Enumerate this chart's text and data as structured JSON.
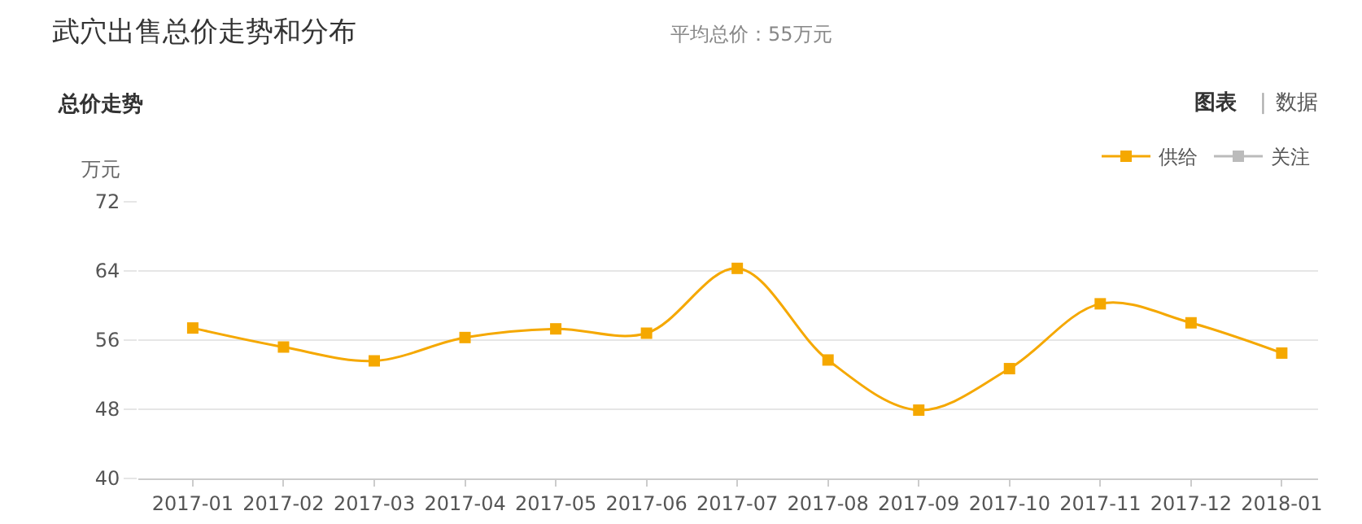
{
  "chart_data": {
    "type": "line",
    "title": "武穴出售总价走势和分布",
    "subtitle": "平均总价：55万元",
    "ylabel": "万元",
    "annotations": [
      "总价走势",
      "图表",
      "|",
      "数据"
    ],
    "categories": [
      "2017-01",
      "2017-02",
      "2017-03",
      "2017-04",
      "2017-05",
      "2017-06",
      "2017-07",
      "2017-08",
      "2017-09",
      "2017-10",
      "2017-11",
      "2017-12",
      "2018-01"
    ],
    "series": [
      {
        "name": "供给",
        "color": "#f5a800",
        "values": [
          57.4,
          55.2,
          53.6,
          56.3,
          57.3,
          56.8,
          64.3,
          53.7,
          47.9,
          52.7,
          60.2,
          58.0,
          54.5
        ]
      },
      {
        "name": "关注",
        "color": "#bbbbbb",
        "values": [
          null,
          null,
          null,
          null,
          null,
          null,
          null,
          null,
          null,
          null,
          null,
          null,
          null
        ]
      }
    ],
    "ylim": [
      40,
      72
    ],
    "yticks": [
      40,
      48,
      56,
      64,
      72
    ],
    "grid": "y",
    "legend": "top right",
    "marker": "square",
    "line_style": "solid"
  }
}
